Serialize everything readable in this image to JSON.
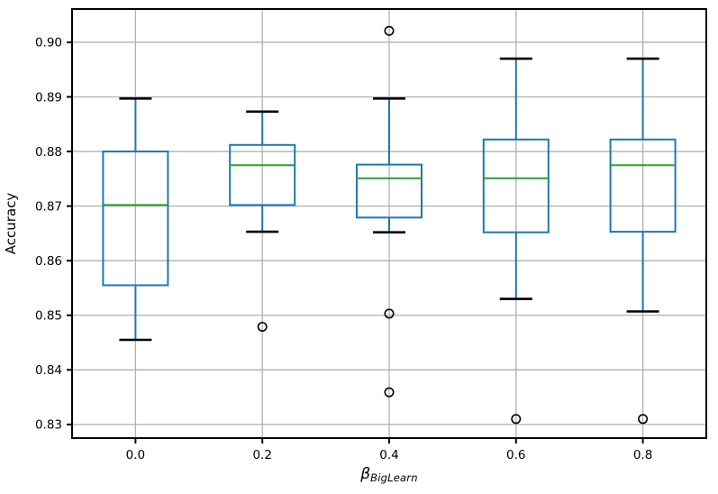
{
  "figure": {
    "background": "#ffffff"
  },
  "chart_data": {
    "type": "boxplot",
    "title": "",
    "ylabel": "Accuracy",
    "xlabel": {
      "symbol": "β",
      "subscript": "BigLearn"
    },
    "categories": [
      "0.0",
      "0.2",
      "0.4",
      "0.6",
      "0.8"
    ],
    "boxes": [
      {
        "category": "0.0",
        "whisker_low": 0.8455,
        "q1": 0.8555,
        "median": 0.8702,
        "q3": 0.88,
        "whisker_high": 0.8897,
        "outliers": []
      },
      {
        "category": "0.2",
        "whisker_low": 0.8653,
        "q1": 0.8702,
        "median": 0.8775,
        "q3": 0.8812,
        "whisker_high": 0.8873,
        "outliers": [
          0.8479
        ]
      },
      {
        "category": "0.4",
        "whisker_low": 0.8652,
        "q1": 0.8679,
        "median": 0.8751,
        "q3": 0.8776,
        "whisker_high": 0.8897,
        "outliers": [
          0.9021,
          0.8503,
          0.8359
        ]
      },
      {
        "category": "0.6",
        "whisker_low": 0.853,
        "q1": 0.8652,
        "median": 0.8751,
        "q3": 0.8822,
        "whisker_high": 0.897,
        "outliers": [
          0.831
        ]
      },
      {
        "category": "0.8",
        "whisker_low": 0.8507,
        "q1": 0.8653,
        "median": 0.8775,
        "q3": 0.8822,
        "whisker_high": 0.897,
        "outliers": [
          0.831
        ]
      }
    ],
    "yticks": [
      0.83,
      0.84,
      0.85,
      0.86,
      0.87,
      0.88,
      0.89,
      0.9
    ],
    "ylim": [
      0.8275,
      0.9061
    ],
    "grid": true,
    "legend": null,
    "colors": {
      "box": "#1f77b4",
      "median": "#2ca02c",
      "whisker": "#1f77b4",
      "cap": "#000000",
      "outlier": "#000000",
      "grid": "#b0b0b0",
      "spine": "#000000",
      "tick_label": "#000000"
    }
  }
}
